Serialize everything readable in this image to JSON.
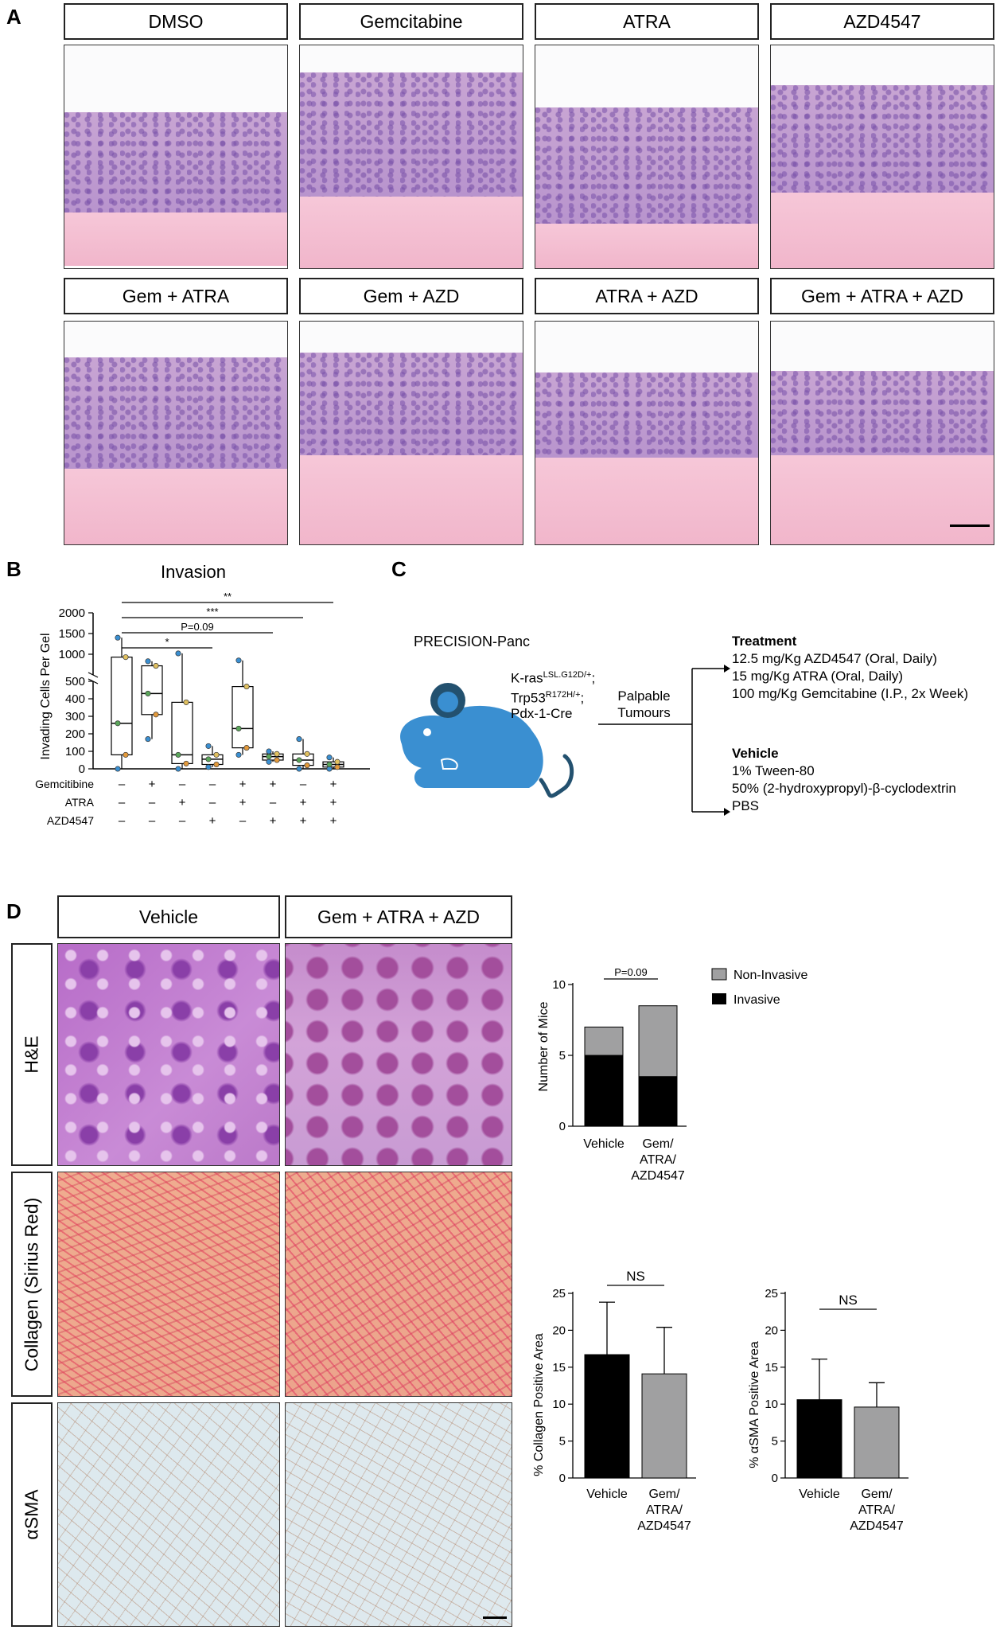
{
  "panel_labels": {
    "a": "A",
    "b": "B",
    "c": "C",
    "d": "D"
  },
  "panel_a": {
    "treatments": [
      "DMSO",
      "Gemcitabine",
      "ATRA",
      "AZD4547",
      "Gem + ATRA",
      "Gem + AZD",
      "ATRA + AZD",
      "Gem + ATRA + AZD"
    ]
  },
  "panel_c": {
    "model": "PRECISION-Panc",
    "genotype_lines": [
      {
        "base": "K-ras",
        "sup": "LSL.G12D/+",
        "tail": ";"
      },
      {
        "base": "Trp53",
        "sup": "R172H/+",
        "tail": ";"
      },
      {
        "base": "Pdx-1-Cre",
        "sup": "",
        "tail": ""
      }
    ],
    "trigger": [
      "Palpable",
      "Tumours"
    ],
    "treatment_title": "Treatment",
    "treatment_lines": [
      "12.5 mg/Kg AZD4547 (Oral, Daily)",
      "15 mg/Kg ATRA (Oral, Daily)",
      "100 mg/Kg Gemcitabine (I.P., 2x Week)"
    ],
    "vehicle_title": "Vehicle",
    "vehicle_lines": [
      "1% Tween-80",
      "50% (2-hydroxypropyl)-β-cyclodextrin",
      "PBS"
    ]
  },
  "panel_d": {
    "columns": [
      "Vehicle",
      "Gem + ATRA + AZD"
    ],
    "rows": [
      "H&E",
      "Collagen (Sirius Red)",
      "αSMA"
    ]
  },
  "colors": {
    "black": "#000000",
    "grey": "#a0a0a1",
    "mouse": "#3a8fd1",
    "mouse_dark": "#23516f"
  },
  "chart_data": [
    {
      "type": "box",
      "title": "Invasion",
      "ylabel": "Invading Cells Per Gel",
      "yaxis": {
        "segments": [
          [
            0,
            500
          ],
          [
            500,
            2000
          ]
        ],
        "ticks": [
          0,
          100,
          200,
          300,
          400,
          500,
          1000,
          1500,
          2000
        ]
      },
      "row_labels": [
        "Gemcitibine",
        "ATRA",
        "AZD4547"
      ],
      "groups": [
        {
          "gem": "–",
          "atra": "–",
          "azd": "–",
          "q1": 80,
          "median": 260,
          "q3": 930,
          "min": 0,
          "max": 1400
        },
        {
          "gem": "+",
          "atra": "–",
          "azd": "–",
          "q1": 310,
          "median": 430,
          "q3": 720,
          "min": 170,
          "max": 830
        },
        {
          "gem": "–",
          "atra": "+",
          "azd": "–",
          "q1": 30,
          "median": 80,
          "q3": 380,
          "min": 0,
          "max": 1020
        },
        {
          "gem": "–",
          "atra": "–",
          "azd": "+",
          "q1": 25,
          "median": 55,
          "q3": 80,
          "min": 10,
          "max": 130
        },
        {
          "gem": "+",
          "atra": "+",
          "azd": "–",
          "q1": 120,
          "median": 230,
          "q3": 470,
          "min": 80,
          "max": 850
        },
        {
          "gem": "+",
          "atra": "–",
          "azd": "+",
          "q1": 50,
          "median": 70,
          "q3": 85,
          "min": 40,
          "max": 100
        },
        {
          "gem": "–",
          "atra": "+",
          "azd": "+",
          "q1": 20,
          "median": 50,
          "q3": 85,
          "min": 0,
          "max": 170
        },
        {
          "gem": "+",
          "atra": "+",
          "azd": "+",
          "q1": 10,
          "median": 25,
          "q3": 40,
          "min": 0,
          "max": 65
        }
      ],
      "significance": [
        "**",
        "***",
        "P=0.09",
        "*"
      ]
    },
    {
      "type": "bar",
      "stacked": true,
      "ylabel": "Number of Mice",
      "ylim": [
        0,
        10
      ],
      "yticks": [
        0,
        5,
        10
      ],
      "categories": [
        "Vehicle",
        "Gem/ ATRA/ AZD4547"
      ],
      "series": [
        {
          "name": "Invasive",
          "values": [
            5,
            3.5
          ]
        },
        {
          "name": "Non-Invasive",
          "values": [
            2,
            5
          ]
        }
      ],
      "annotation": "P=0.09"
    },
    {
      "type": "bar",
      "ylabel": "% Collagen Positive Area",
      "ylim": [
        0,
        25
      ],
      "yticks": [
        0,
        5,
        10,
        15,
        20,
        25
      ],
      "categories": [
        "Vehicle",
        "Gem/ ATRA/ AZD4547"
      ],
      "values": [
        16.7,
        14.1
      ],
      "errors": [
        7.1,
        6.3
      ],
      "annotation": "NS"
    },
    {
      "type": "bar",
      "ylabel": "% αSMA Positive Area",
      "ylim": [
        0,
        25
      ],
      "yticks": [
        0,
        5,
        10,
        15,
        20,
        25
      ],
      "categories": [
        "Vehicle",
        "Gem/ ATRA/ AZD4547"
      ],
      "values": [
        10.6,
        9.6
      ],
      "errors": [
        5.5,
        3.3
      ],
      "annotation": "NS"
    }
  ]
}
